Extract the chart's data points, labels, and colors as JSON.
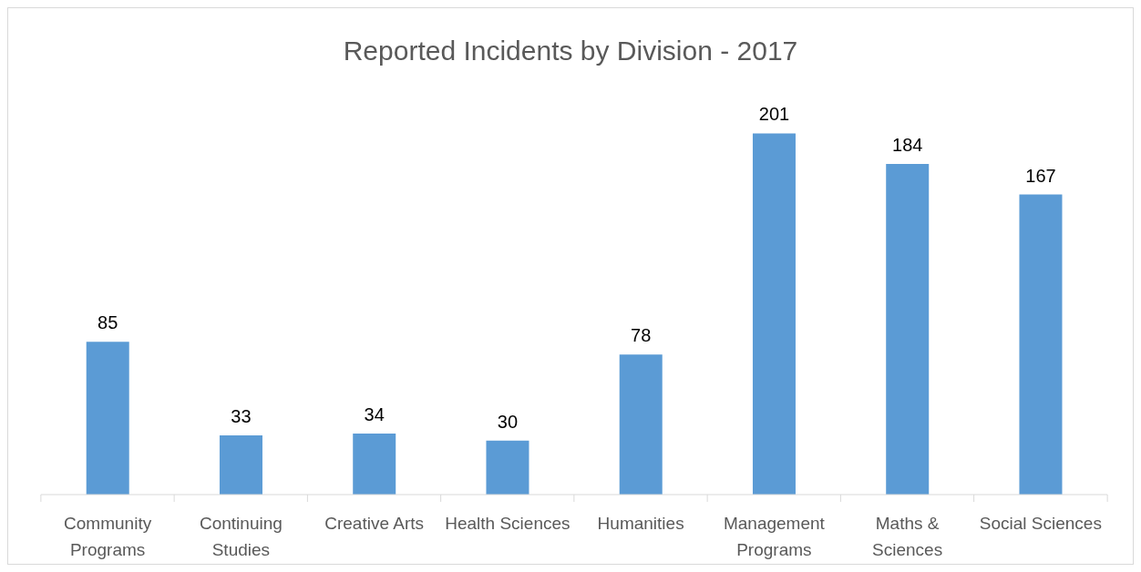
{
  "chart_data": {
    "type": "bar",
    "title": "Reported Incidents by Division - 2017",
    "categories": [
      "Community Programs",
      "Continuing Studies",
      "Creative Arts",
      "Health Sciences",
      "Humanities",
      "Management Programs",
      "Maths & Sciences",
      "Social Sciences"
    ],
    "values": [
      85,
      33,
      34,
      30,
      78,
      201,
      184,
      167
    ],
    "color": "#5b9bd5",
    "data_labels": true
  }
}
